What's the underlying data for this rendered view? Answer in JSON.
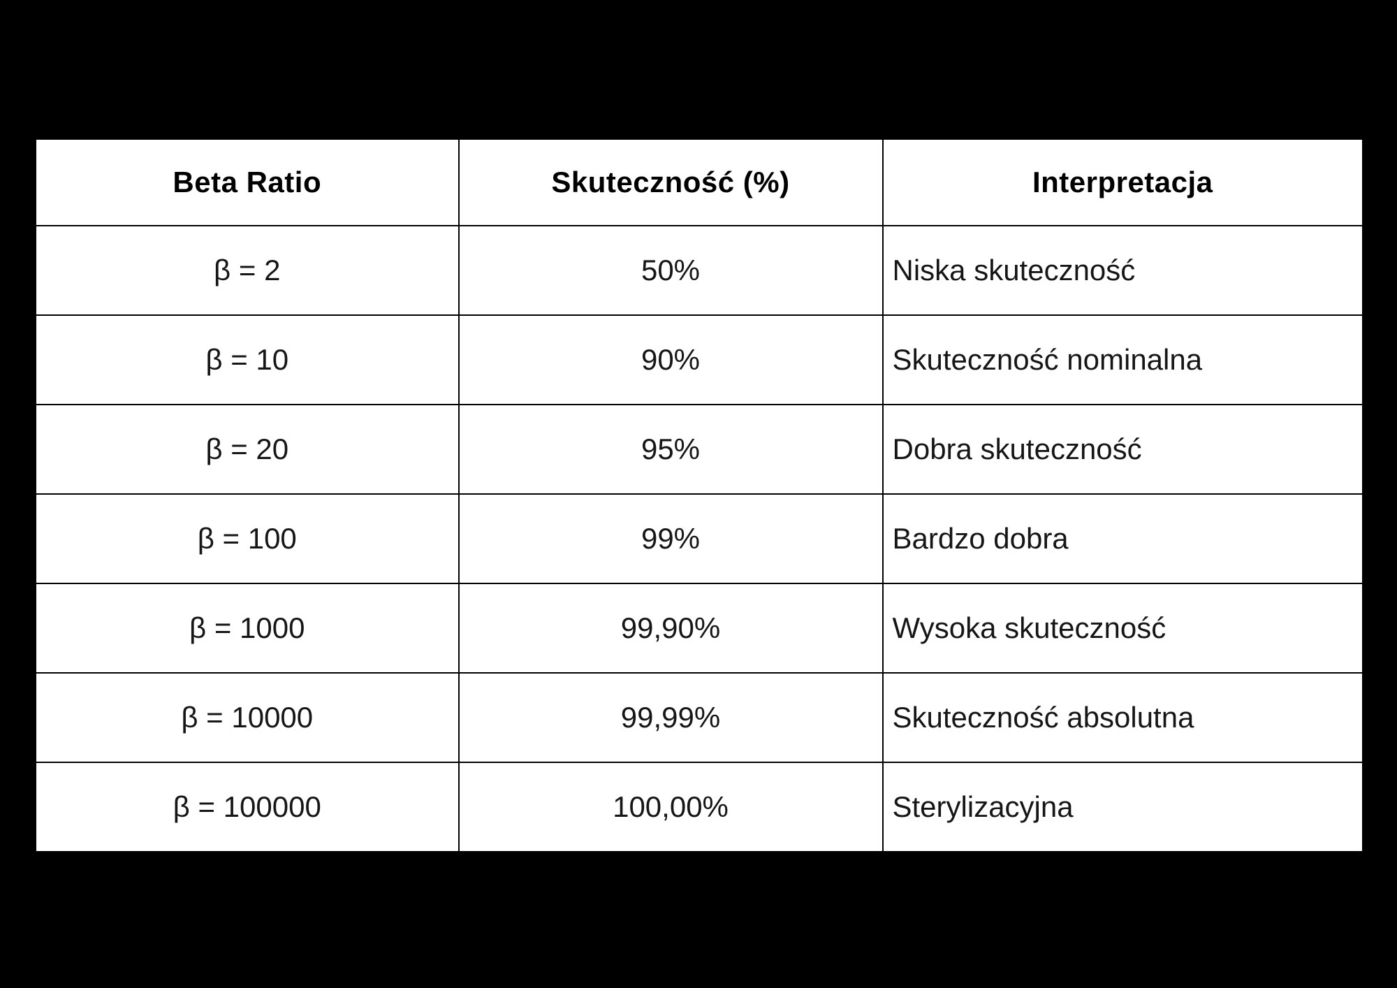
{
  "page": {
    "background_color": "#000000"
  },
  "chart_data": {
    "type": "table",
    "title": "",
    "columns": [
      {
        "label": "Beta Ratio",
        "align": "center"
      },
      {
        "label": "Skuteczność (%)",
        "align": "center"
      },
      {
        "label": "Interpretacja",
        "align": "center"
      }
    ],
    "rows": [
      {
        "beta_ratio": "β = 2",
        "skutecznosc": "50%",
        "interpretacja": "Niska skuteczność"
      },
      {
        "beta_ratio": "β = 10",
        "skutecznosc": "90%",
        "interpretacja": "Skuteczność nominalna"
      },
      {
        "beta_ratio": "β = 20",
        "skutecznosc": "95%",
        "interpretacja": "Dobra skuteczność"
      },
      {
        "beta_ratio": "β = 100",
        "skutecznosc": "99%",
        "interpretacja": "Bardzo dobra"
      },
      {
        "beta_ratio": "β = 1000",
        "skutecznosc": "99,90%",
        "interpretacja": "Wysoka skuteczność"
      },
      {
        "beta_ratio": "β = 10000",
        "skutecznosc": "99,99%",
        "interpretacja": "Skuteczność absolutna"
      },
      {
        "beta_ratio": "β = 100000",
        "skutecznosc": "100,00%",
        "interpretacja": "Sterylizacyjna"
      }
    ],
    "layout": {
      "header_row_align": "center",
      "body_col1_align": "center",
      "body_col2_align": "center",
      "body_col3_align": "left",
      "grid": "all-borders"
    },
    "colors": {
      "page_background": "#000000",
      "cell_background": "#ffffff",
      "border": "#000000",
      "header_text": "#000000",
      "body_text": "#161616"
    }
  }
}
